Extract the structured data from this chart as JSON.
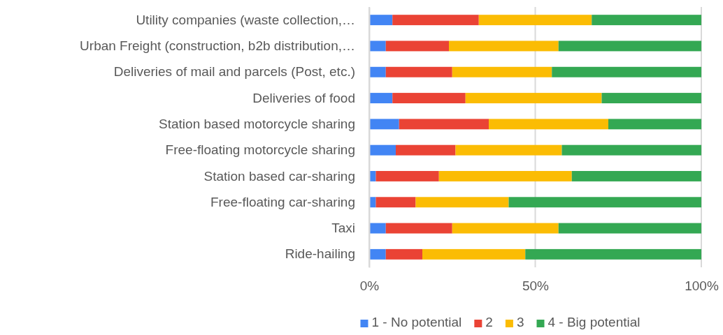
{
  "chart_data": {
    "type": "bar",
    "orientation": "horizontal",
    "stacked": true,
    "categories": [
      "Utility companies (waste collection,…",
      "Urban Freight (construction, b2b distribution,…",
      "Deliveries of mail and parcels (Post, etc.)",
      "Deliveries of food",
      "Station based motorcycle sharing",
      "Free-floating motorcycle sharing",
      "Station based car-sharing",
      "Free-floating car-sharing",
      "Taxi",
      "Ride-hailing"
    ],
    "series": [
      {
        "name": "1 - No potential",
        "color": "#4285f4",
        "values": [
          7,
          5,
          5,
          7,
          9,
          8,
          2,
          2,
          5,
          5
        ]
      },
      {
        "name": "2",
        "color": "#ea4335",
        "values": [
          26,
          19,
          20,
          22,
          27,
          18,
          19,
          12,
          20,
          11
        ]
      },
      {
        "name": "3",
        "color": "#fbbc04",
        "values": [
          34,
          33,
          30,
          41,
          36,
          32,
          40,
          28,
          32,
          31
        ]
      },
      {
        "name": "4 - Big potential",
        "color": "#34a853",
        "values": [
          33,
          43,
          45,
          30,
          28,
          42,
          39,
          58,
          43,
          53
        ]
      }
    ],
    "xlim": [
      0,
      100
    ],
    "xticks": [
      {
        "value": 0,
        "label": "0%"
      },
      {
        "value": 50,
        "label": "50%"
      },
      {
        "value": 100,
        "label": "100%"
      }
    ],
    "grid": "x",
    "legend": "bottom"
  }
}
